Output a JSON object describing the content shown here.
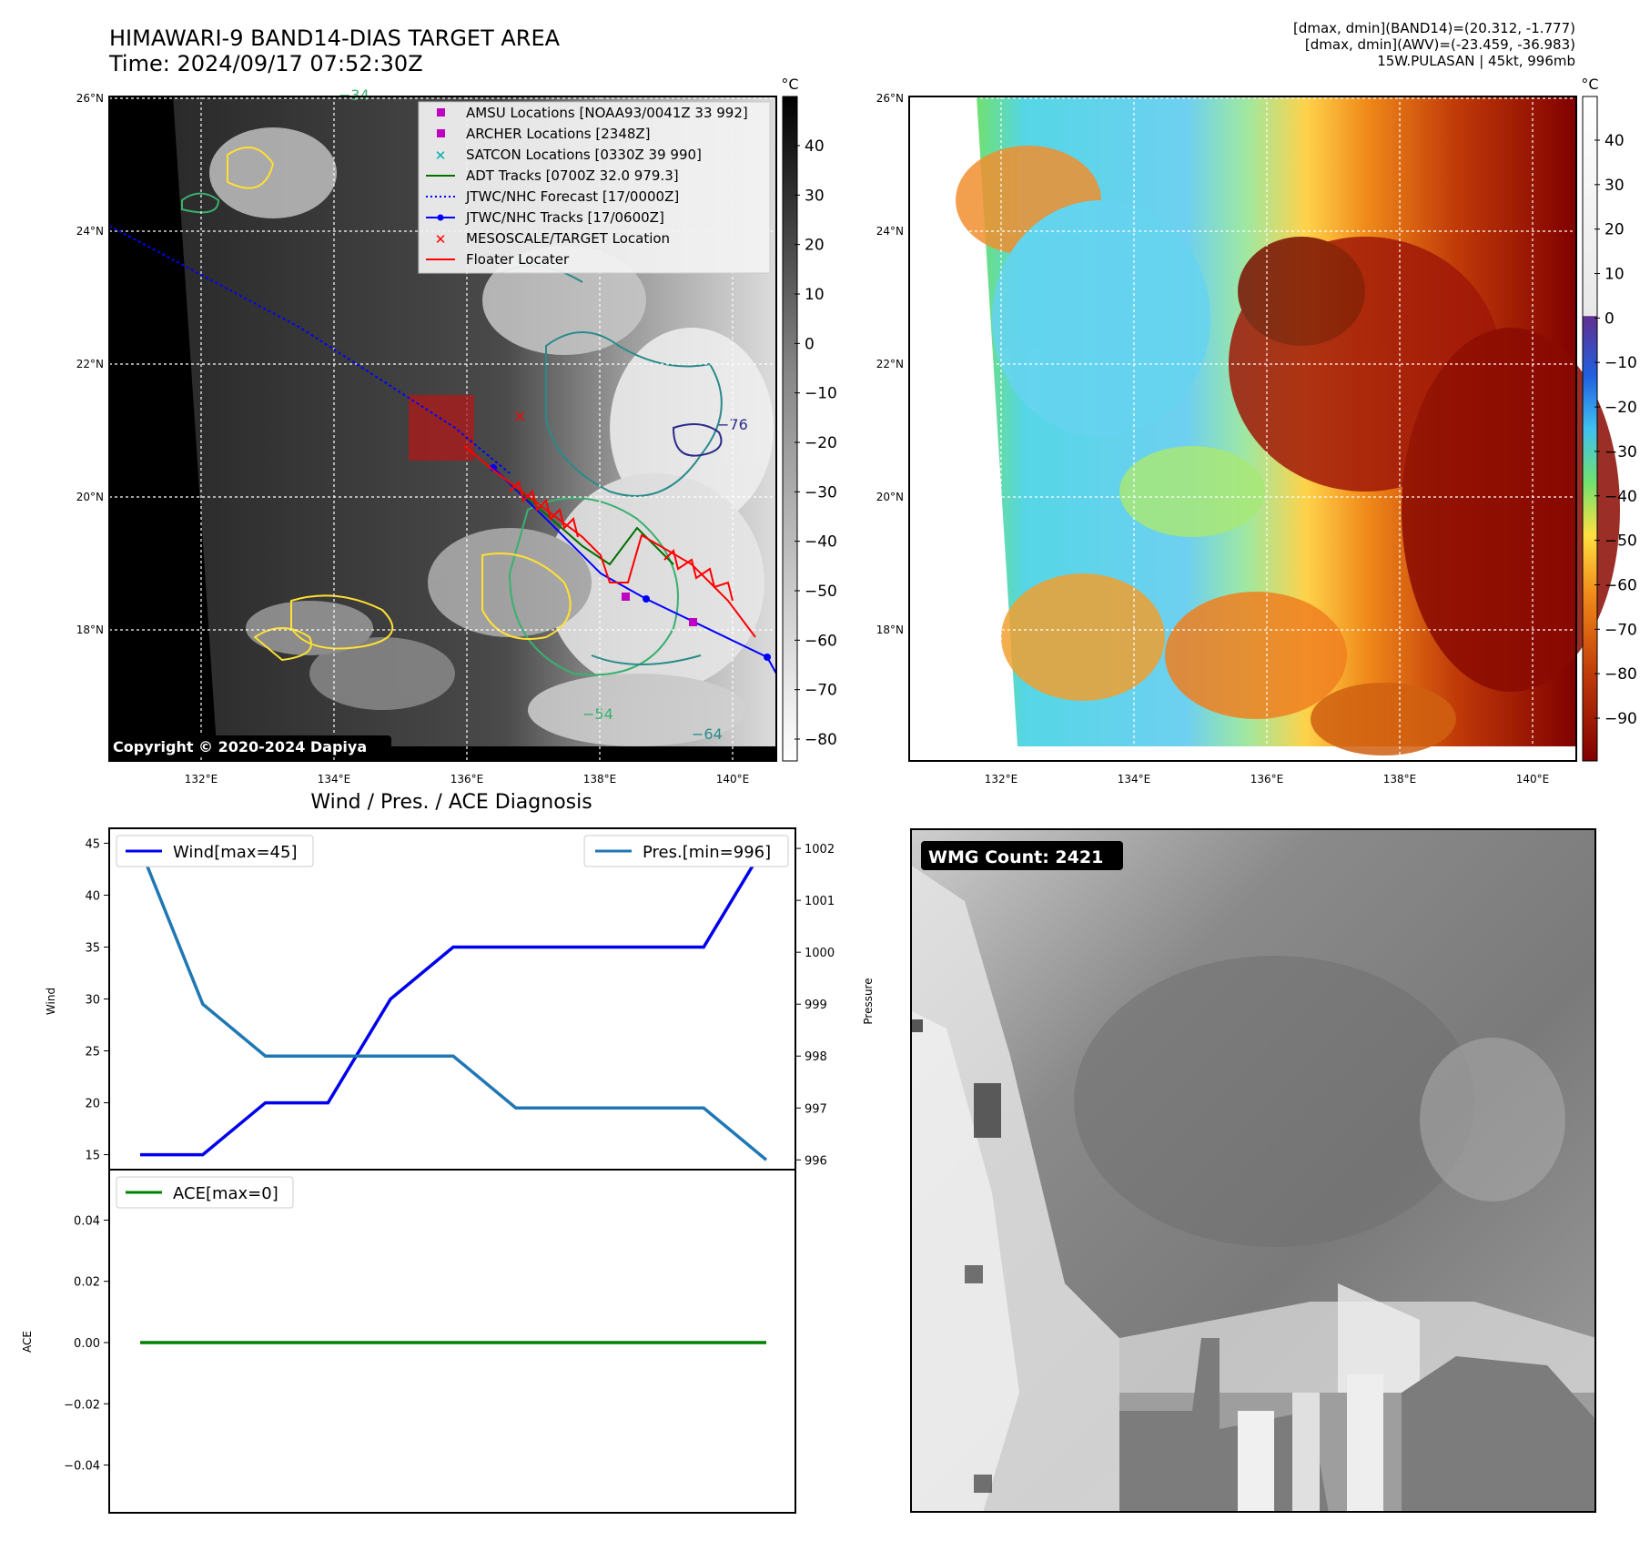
{
  "header": {
    "title_line1": "HIMAWARI-9 BAND14-DIAS TARGET AREA",
    "title_line2": "Time: 2024/09/17 07:52:30Z",
    "meta_line1": "[dmax, dmin](BAND14)=(20.312, -1.777)",
    "meta_line2": "[dmax, dmin](AWV)=(-23.459, -36.983)",
    "meta_line3": "15W.PULASAN | 45kt, 996mb"
  },
  "map_axes": {
    "lat_labels": [
      "26°N",
      "24°N",
      "22°N",
      "20°N",
      "18°N"
    ],
    "lon_labels": [
      "132°E",
      "134°E",
      "136°E",
      "138°E",
      "140°E"
    ]
  },
  "panel_ir": {
    "colorbar_unit": "°C",
    "colorbar_ticks": [
      "40",
      "30",
      "20",
      "10",
      "0",
      "−10",
      "−20",
      "−30",
      "−40",
      "−50",
      "−60",
      "−70",
      "−80"
    ],
    "copyright": "Copyright © 2020-2024 Dapiya",
    "contour_labels": [
      "−76",
      "−64",
      "−54",
      "−34"
    ],
    "legend": [
      {
        "label": "AMSU Locations [NOAA93/0041Z 33 992]",
        "marker": "square",
        "color": "#c000c0"
      },
      {
        "label": "ARCHER Locations [2348Z]",
        "marker": "square",
        "color": "#c000c0"
      },
      {
        "label": "SATCON Locations [0330Z 39 990]",
        "marker": "x",
        "color": "#00b0b0"
      },
      {
        "label": "ADT Tracks [0700Z 32.0 979.3]",
        "marker": "line",
        "color": "#007000"
      },
      {
        "label": "JTWC/NHC Forecast [17/0000Z]",
        "marker": "dotted",
        "color": "#0000ff"
      },
      {
        "label": "JTWC/NHC Tracks [17/0600Z]",
        "marker": "line-dot",
        "color": "#0000ff"
      },
      {
        "label": "MESOSCALE/TARGET Location",
        "marker": "x",
        "color": "#ff0000"
      },
      {
        "label": "Floater Locater",
        "marker": "line",
        "color": "#ff0000"
      }
    ]
  },
  "panel_awv": {
    "colorbar_unit": "°C",
    "colorbar_ticks": [
      "40",
      "30",
      "20",
      "10",
      "0",
      "−10",
      "−20",
      "−30",
      "−40",
      "−50",
      "−60",
      "−70",
      "−80",
      "−90"
    ]
  },
  "panel_diag": {
    "title": "Wind / Pres. / ACE Diagnosis",
    "wind_legend": "Wind[max=45]",
    "pres_legend": "Pres.[min=996]",
    "ace_legend": "ACE[max=0]",
    "wind_ylabel": "Wind",
    "pres_ylabel": "Pressure",
    "ace_ylabel": "ACE",
    "wind_ticks": [
      "45",
      "40",
      "35",
      "30",
      "25",
      "20",
      "15"
    ],
    "pres_ticks": [
      "1002",
      "1001",
      "1000",
      "999",
      "998",
      "997",
      "996"
    ],
    "ace_ticks": [
      "0.04",
      "0.02",
      "0.00",
      "−0.02",
      "−0.04"
    ]
  },
  "panel_wmg": {
    "badge": "WMG Count: 2421"
  },
  "chart_data": [
    {
      "type": "line",
      "title": "Wind / Pres. / ACE Diagnosis",
      "ylabel": "Wind",
      "y2label": "Pressure",
      "x": [
        0,
        1,
        2,
        3,
        4,
        5,
        6,
        7,
        8,
        9,
        10
      ],
      "ylim": [
        14,
        46
      ],
      "y2lim": [
        995.9,
        1002.3
      ],
      "series": [
        {
          "name": "Wind[max=45]",
          "axis": "left",
          "color": "#0000ee",
          "values": [
            15,
            15,
            20,
            20,
            30,
            35,
            35,
            35,
            35,
            35,
            45
          ]
        },
        {
          "name": "Pres.[min=996]",
          "axis": "right",
          "color": "#1f77b4",
          "values": [
            1002,
            999,
            998,
            998,
            998,
            998,
            997,
            997,
            997,
            997,
            996
          ]
        }
      ]
    },
    {
      "type": "line",
      "ylabel": "ACE",
      "x": [
        0,
        1,
        2,
        3,
        4,
        5,
        6,
        7,
        8,
        9,
        10
      ],
      "ylim": [
        -0.055,
        0.055
      ],
      "series": [
        {
          "name": "ACE[max=0]",
          "color": "#008000",
          "values": [
            0,
            0,
            0,
            0,
            0,
            0,
            0,
            0,
            0,
            0,
            0
          ]
        }
      ]
    }
  ]
}
